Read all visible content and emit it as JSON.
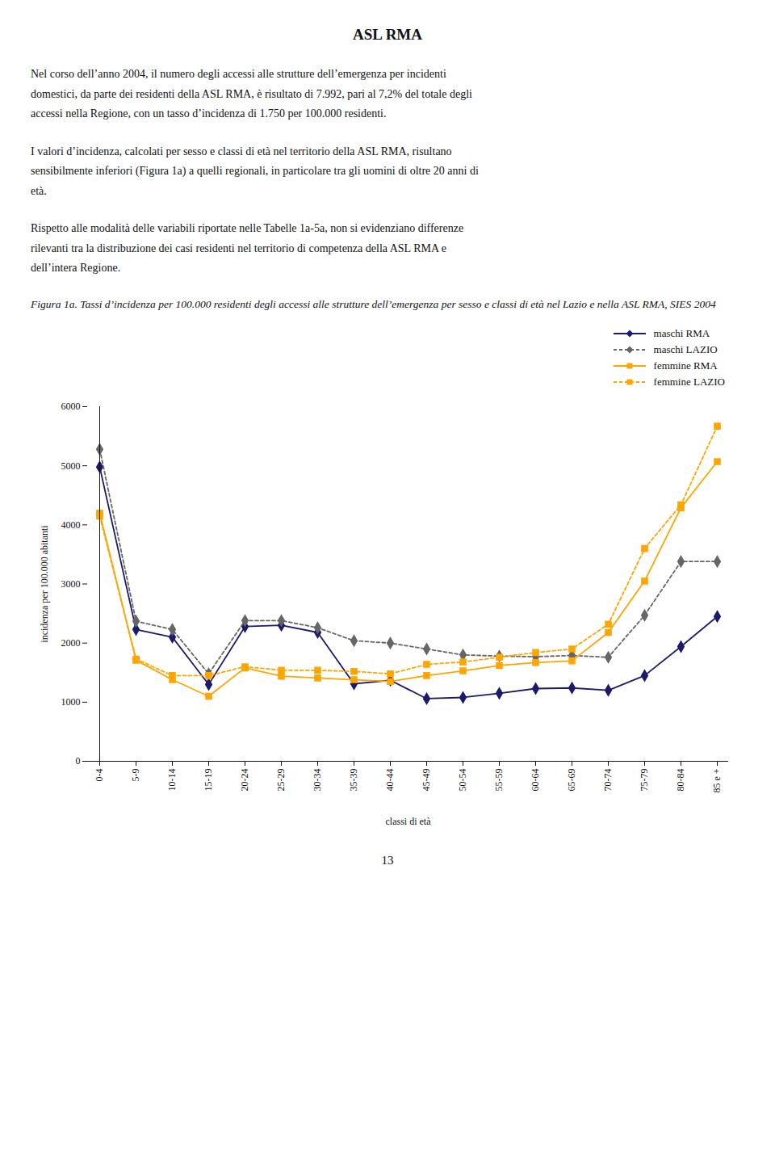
{
  "page_title": "ASL RMA",
  "paragraphs": [
    "Nel corso dell’anno 2004, il numero degli accessi alle strutture dell’emergenza per incidenti\ndomestici, da parte dei residenti della ASL RMA, è risultato di 7.992, pari al 7,2% del totale degli\naccessi nella Regione, con un tasso d’incidenza di 1.750 per 100.000 residenti.",
    "I valori d’incidenza, calcolati per sesso e classi di età nel territorio della ASL RMA, risultano\nsensibilmente inferiori (Figura 1a) a quelli regionali, in particolare tra gli uomini di oltre 20 anni di\netà.",
    "Rispetto alle modalità delle variabili riportate nelle Tabelle 1a-5a, non si evidenziano differenze\nrilevanti tra la distribuzione dei casi residenti nel territorio di competenza della ASL RMA e\ndell’intera Regione."
  ],
  "caption": "Figura 1a. Tassi d’incidenza per 100.000 residenti degli accessi alle strutture dell’emergenza per sesso e classi di età nel Lazio e nella ASL RMA, SIES 2004",
  "page_number": "13",
  "chart_data": {
    "type": "line",
    "xlabel": "classi di età",
    "ylabel": "incidenza per 100.000 abitanti",
    "categories": [
      "0-4",
      "5-9",
      "10-14",
      "15-19",
      "20-24",
      "25-29",
      "30-34",
      "35-39",
      "40-44",
      "45-49",
      "50-54",
      "55-59",
      "60-64",
      "65-69",
      "70-74",
      "75-79",
      "80-84",
      "85 e +"
    ],
    "series": [
      {
        "name": "maschi RMA",
        "color": "#1a1a6e",
        "marker": "diamond",
        "line_style": "solid",
        "values": [
          4980,
          2230,
          2100,
          1300,
          2280,
          2300,
          2180,
          1310,
          1370,
          1060,
          1080,
          1150,
          1230,
          1240,
          1200,
          1450,
          1940,
          2450
        ]
      },
      {
        "name": "maschi LAZIO",
        "color": "#666666",
        "marker": "diamond",
        "line_style": "dashed",
        "values": [
          5280,
          2370,
          2230,
          1480,
          2380,
          2380,
          2260,
          2040,
          2000,
          1900,
          1800,
          1780,
          1770,
          1790,
          1760,
          2470,
          3380,
          3380
        ]
      },
      {
        "name": "femmine RMA",
        "color": "#FFA500",
        "marker": "square",
        "line_style": "solid",
        "values": [
          4200,
          1710,
          1380,
          1100,
          1580,
          1440,
          1410,
          1380,
          1350,
          1450,
          1530,
          1620,
          1670,
          1700,
          2180,
          3050,
          4290,
          5070
        ]
      },
      {
        "name": "femmine LAZIO",
        "color": "#FFA500",
        "marker": "square",
        "line_style": "dashed",
        "values": [
          4150,
          1730,
          1450,
          1450,
          1600,
          1540,
          1540,
          1520,
          1480,
          1640,
          1680,
          1760,
          1840,
          1900,
          2320,
          3600,
          4340,
          5670
        ]
      }
    ],
    "ylim": [
      0,
      6000
    ],
    "yticks": [
      0,
      1000,
      2000,
      3000,
      4000,
      5000,
      6000
    ],
    "grid": false,
    "legend": "upper right"
  }
}
